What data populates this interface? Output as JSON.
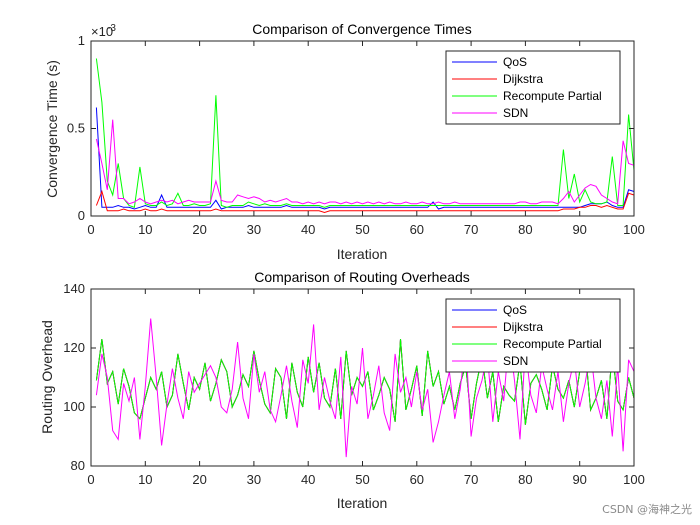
{
  "watermark": "CSDN @海神之光",
  "chart_data": [
    {
      "type": "line",
      "title": "Comparison of Convergence Times",
      "xlabel": "Iteration",
      "ylabel": "Convergence Time (s)",
      "y_exponent_label": "×10",
      "y_exponent_power": "-3",
      "xlim": [
        0,
        100
      ],
      "ylim": [
        0,
        1
      ],
      "xticks": [
        0,
        10,
        20,
        30,
        40,
        50,
        60,
        70,
        80,
        90,
        100
      ],
      "yticks": [
        0,
        0.5,
        1
      ],
      "ytick_labels": [
        "0",
        "0.5",
        "1"
      ],
      "legend_position": "top-right",
      "x": [
        1,
        2,
        3,
        4,
        5,
        6,
        7,
        8,
        9,
        10,
        11,
        12,
        13,
        14,
        15,
        16,
        17,
        18,
        19,
        20,
        21,
        22,
        23,
        24,
        25,
        26,
        27,
        28,
        29,
        30,
        31,
        32,
        33,
        34,
        35,
        36,
        37,
        38,
        39,
        40,
        41,
        42,
        43,
        44,
        45,
        46,
        47,
        48,
        49,
        50,
        51,
        52,
        53,
        54,
        55,
        56,
        57,
        58,
        59,
        60,
        61,
        62,
        63,
        64,
        65,
        66,
        67,
        68,
        69,
        70,
        71,
        72,
        73,
        74,
        75,
        76,
        77,
        78,
        79,
        80,
        81,
        82,
        83,
        84,
        85,
        86,
        87,
        88,
        89,
        90,
        91,
        92,
        93,
        94,
        95,
        96,
        97,
        98,
        99,
        100
      ],
      "series": [
        {
          "name": "QoS",
          "color": "#0000ff",
          "values": [
            0.62,
            0.05,
            0.05,
            0.05,
            0.06,
            0.05,
            0.05,
            0.04,
            0.05,
            0.06,
            0.05,
            0.05,
            0.12,
            0.05,
            0.05,
            0.05,
            0.05,
            0.05,
            0.05,
            0.05,
            0.05,
            0.05,
            0.09,
            0.04,
            0.05,
            0.05,
            0.05,
            0.05,
            0.06,
            0.05,
            0.05,
            0.05,
            0.05,
            0.05,
            0.05,
            0.06,
            0.05,
            0.05,
            0.05,
            0.05,
            0.05,
            0.05,
            0.04,
            0.05,
            0.05,
            0.05,
            0.05,
            0.05,
            0.05,
            0.05,
            0.05,
            0.05,
            0.05,
            0.05,
            0.05,
            0.05,
            0.05,
            0.05,
            0.05,
            0.05,
            0.05,
            0.05,
            0.08,
            0.04,
            0.05,
            0.05,
            0.05,
            0.05,
            0.05,
            0.05,
            0.05,
            0.05,
            0.05,
            0.05,
            0.05,
            0.05,
            0.05,
            0.05,
            0.05,
            0.05,
            0.05,
            0.05,
            0.05,
            0.05,
            0.05,
            0.05,
            0.05,
            0.05,
            0.05,
            0.05,
            0.06,
            0.07,
            0.07,
            0.07,
            0.08,
            0.06,
            0.05,
            0.05,
            0.15,
            0.14
          ]
        },
        {
          "name": "Dijkstra",
          "color": "#ff0000",
          "values": [
            0.06,
            0.14,
            0.03,
            0.03,
            0.03,
            0.04,
            0.03,
            0.03,
            0.03,
            0.04,
            0.03,
            0.03,
            0.04,
            0.03,
            0.03,
            0.03,
            0.03,
            0.03,
            0.03,
            0.03,
            0.03,
            0.03,
            0.04,
            0.03,
            0.03,
            0.03,
            0.03,
            0.03,
            0.03,
            0.03,
            0.03,
            0.03,
            0.03,
            0.03,
            0.03,
            0.03,
            0.03,
            0.03,
            0.03,
            0.03,
            0.03,
            0.03,
            0.02,
            0.03,
            0.03,
            0.03,
            0.03,
            0.03,
            0.03,
            0.03,
            0.03,
            0.03,
            0.03,
            0.03,
            0.03,
            0.03,
            0.03,
            0.03,
            0.03,
            0.03,
            0.03,
            0.03,
            0.03,
            0.03,
            0.03,
            0.03,
            0.03,
            0.03,
            0.03,
            0.03,
            0.03,
            0.03,
            0.03,
            0.03,
            0.03,
            0.03,
            0.03,
            0.03,
            0.03,
            0.03,
            0.03,
            0.03,
            0.03,
            0.03,
            0.03,
            0.03,
            0.04,
            0.04,
            0.04,
            0.05,
            0.05,
            0.06,
            0.06,
            0.05,
            0.06,
            0.05,
            0.04,
            0.04,
            0.13,
            0.12
          ]
        },
        {
          "name": "Recompute Partial",
          "color": "#00ff00",
          "values": [
            0.9,
            0.65,
            0.2,
            0.12,
            0.3,
            0.1,
            0.06,
            0.05,
            0.28,
            0.07,
            0.06,
            0.06,
            0.08,
            0.06,
            0.07,
            0.13,
            0.06,
            0.06,
            0.07,
            0.06,
            0.06,
            0.07,
            0.69,
            0.06,
            0.05,
            0.06,
            0.06,
            0.06,
            0.08,
            0.07,
            0.06,
            0.07,
            0.06,
            0.06,
            0.06,
            0.07,
            0.06,
            0.06,
            0.06,
            0.06,
            0.06,
            0.06,
            0.05,
            0.06,
            0.06,
            0.06,
            0.06,
            0.06,
            0.06,
            0.06,
            0.06,
            0.06,
            0.06,
            0.06,
            0.06,
            0.06,
            0.06,
            0.06,
            0.06,
            0.06,
            0.06,
            0.06,
            0.06,
            0.06,
            0.06,
            0.06,
            0.06,
            0.06,
            0.06,
            0.06,
            0.06,
            0.06,
            0.06,
            0.06,
            0.06,
            0.06,
            0.06,
            0.06,
            0.06,
            0.06,
            0.06,
            0.06,
            0.06,
            0.06,
            0.06,
            0.06,
            0.38,
            0.1,
            0.24,
            0.08,
            0.15,
            0.08,
            0.07,
            0.07,
            0.08,
            0.34,
            0.06,
            0.06,
            0.58,
            0.26
          ]
        },
        {
          "name": "SDN",
          "color": "#ff00ff",
          "values": [
            0.44,
            0.3,
            0.15,
            0.55,
            0.1,
            0.1,
            0.07,
            0.08,
            0.1,
            0.08,
            0.07,
            0.08,
            0.09,
            0.08,
            0.09,
            0.07,
            0.08,
            0.09,
            0.08,
            0.08,
            0.08,
            0.08,
            0.2,
            0.09,
            0.08,
            0.08,
            0.12,
            0.11,
            0.1,
            0.11,
            0.1,
            0.08,
            0.09,
            0.08,
            0.09,
            0.1,
            0.08,
            0.08,
            0.07,
            0.08,
            0.07,
            0.08,
            0.07,
            0.08,
            0.08,
            0.07,
            0.08,
            0.07,
            0.08,
            0.07,
            0.08,
            0.07,
            0.08,
            0.07,
            0.08,
            0.07,
            0.07,
            0.08,
            0.07,
            0.07,
            0.08,
            0.07,
            0.07,
            0.08,
            0.07,
            0.07,
            0.08,
            0.07,
            0.07,
            0.07,
            0.07,
            0.07,
            0.07,
            0.07,
            0.07,
            0.07,
            0.07,
            0.07,
            0.08,
            0.08,
            0.07,
            0.07,
            0.08,
            0.08,
            0.08,
            0.07,
            0.1,
            0.14,
            0.08,
            0.12,
            0.16,
            0.18,
            0.17,
            0.12,
            0.1,
            0.08,
            0.07,
            0.43,
            0.3,
            0.29
          ]
        }
      ]
    },
    {
      "type": "line",
      "title": "Comparison of Routing Overheads",
      "xlabel": "Iteration",
      "ylabel": "Routing Overhead",
      "xlim": [
        0,
        100
      ],
      "ylim": [
        80,
        140
      ],
      "xticks": [
        0,
        10,
        20,
        30,
        40,
        50,
        60,
        70,
        80,
        90,
        100
      ],
      "yticks": [
        80,
        100,
        120,
        140
      ],
      "ytick_labels": [
        "80",
        "100",
        "120",
        "140"
      ],
      "legend_position": "top-right",
      "x": [
        1,
        2,
        3,
        4,
        5,
        6,
        7,
        8,
        9,
        10,
        11,
        12,
        13,
        14,
        15,
        16,
        17,
        18,
        19,
        20,
        21,
        22,
        23,
        24,
        25,
        26,
        27,
        28,
        29,
        30,
        31,
        32,
        33,
        34,
        35,
        36,
        37,
        38,
        39,
        40,
        41,
        42,
        43,
        44,
        45,
        46,
        47,
        48,
        49,
        50,
        51,
        52,
        53,
        54,
        55,
        56,
        57,
        58,
        59,
        60,
        61,
        62,
        63,
        64,
        65,
        66,
        67,
        68,
        69,
        70,
        71,
        72,
        73,
        74,
        75,
        76,
        77,
        78,
        79,
        80,
        81,
        82,
        83,
        84,
        85,
        86,
        87,
        88,
        89,
        90,
        91,
        92,
        93,
        94,
        95,
        96,
        97,
        98,
        99,
        100
      ],
      "series": [
        {
          "name": "QoS",
          "color": "#0000ff",
          "values": [
            109,
            123,
            108,
            112,
            101,
            113,
            107,
            98,
            96,
            103,
            110,
            106,
            112,
            100,
            104,
            118,
            108,
            99,
            110,
            106,
            115,
            102,
            108,
            116,
            112,
            100,
            104,
            111,
            107,
            119,
            109,
            101,
            98,
            113,
            110,
            96,
            115,
            105,
            100,
            117,
            105,
            115,
            103,
            100,
            113,
            96,
            119,
            104,
            110,
            107,
            112,
            99,
            104,
            110,
            106,
            95,
            123,
            99,
            106,
            114,
            97,
            119,
            107,
            112,
            101,
            107,
            99,
            108,
            114,
            96,
            108,
            117,
            103,
            112,
            95,
            107,
            104,
            102,
            115,
            94,
            108,
            111,
            106,
            99,
            114,
            106,
            103,
            109,
            100,
            112,
            120,
            99,
            103,
            109,
            96,
            119,
            102,
            99,
            110,
            103
          ]
        },
        {
          "name": "Dijkstra",
          "color": "#ff0000",
          "values": [
            109,
            123,
            108,
            112,
            101,
            113,
            107,
            98,
            96,
            103,
            110,
            106,
            112,
            100,
            104,
            118,
            108,
            99,
            110,
            106,
            115,
            102,
            108,
            116,
            112,
            100,
            104,
            111,
            107,
            119,
            109,
            101,
            98,
            113,
            110,
            96,
            115,
            105,
            100,
            117,
            105,
            115,
            103,
            100,
            113,
            96,
            119,
            104,
            110,
            107,
            112,
            99,
            104,
            110,
            106,
            95,
            123,
            99,
            106,
            114,
            97,
            119,
            107,
            112,
            101,
            107,
            99,
            108,
            114,
            96,
            108,
            117,
            103,
            112,
            95,
            107,
            104,
            102,
            115,
            94,
            108,
            111,
            106,
            99,
            114,
            106,
            103,
            109,
            100,
            112,
            120,
            99,
            103,
            109,
            96,
            119,
            102,
            99,
            110,
            103
          ]
        },
        {
          "name": "Recompute Partial",
          "color": "#00ff00",
          "values": [
            109,
            123,
            108,
            112,
            101,
            113,
            107,
            98,
            96,
            103,
            110,
            106,
            112,
            100,
            104,
            118,
            108,
            99,
            110,
            106,
            115,
            102,
            108,
            116,
            112,
            100,
            104,
            111,
            107,
            119,
            109,
            101,
            98,
            113,
            110,
            96,
            115,
            105,
            100,
            117,
            105,
            115,
            103,
            100,
            113,
            96,
            119,
            104,
            110,
            107,
            112,
            99,
            104,
            110,
            106,
            95,
            123,
            99,
            106,
            114,
            97,
            119,
            107,
            112,
            101,
            107,
            99,
            108,
            114,
            96,
            108,
            117,
            103,
            112,
            95,
            107,
            104,
            102,
            115,
            94,
            108,
            111,
            106,
            99,
            114,
            106,
            103,
            109,
            100,
            112,
            120,
            99,
            103,
            109,
            96,
            119,
            102,
            99,
            110,
            103
          ]
        },
        {
          "name": "SDN",
          "color": "#ff00ff",
          "values": [
            104,
            118,
            110,
            92,
            89,
            108,
            102,
            110,
            89,
            107,
            130,
            110,
            87,
            101,
            113,
            103,
            96,
            112,
            105,
            108,
            111,
            114,
            110,
            100,
            98,
            106,
            122,
            103,
            96,
            118,
            105,
            112,
            99,
            95,
            104,
            114,
            102,
            93,
            116,
            108,
            128,
            99,
            110,
            102,
            96,
            117,
            83,
            107,
            101,
            120,
            96,
            104,
            114,
            98,
            92,
            118,
            105,
            110,
            100,
            112,
            99,
            106,
            88,
            95,
            104,
            112,
            96,
            106,
            122,
            90,
            103,
            109,
            118,
            95,
            112,
            102,
            124,
            109,
            89,
            120,
            104,
            98,
            114,
            106,
            99,
            112,
            95,
            108,
            116,
            100,
            108,
            119,
            103,
            96,
            109,
            90,
            114,
            85,
            116,
            112
          ]
        }
      ]
    }
  ]
}
